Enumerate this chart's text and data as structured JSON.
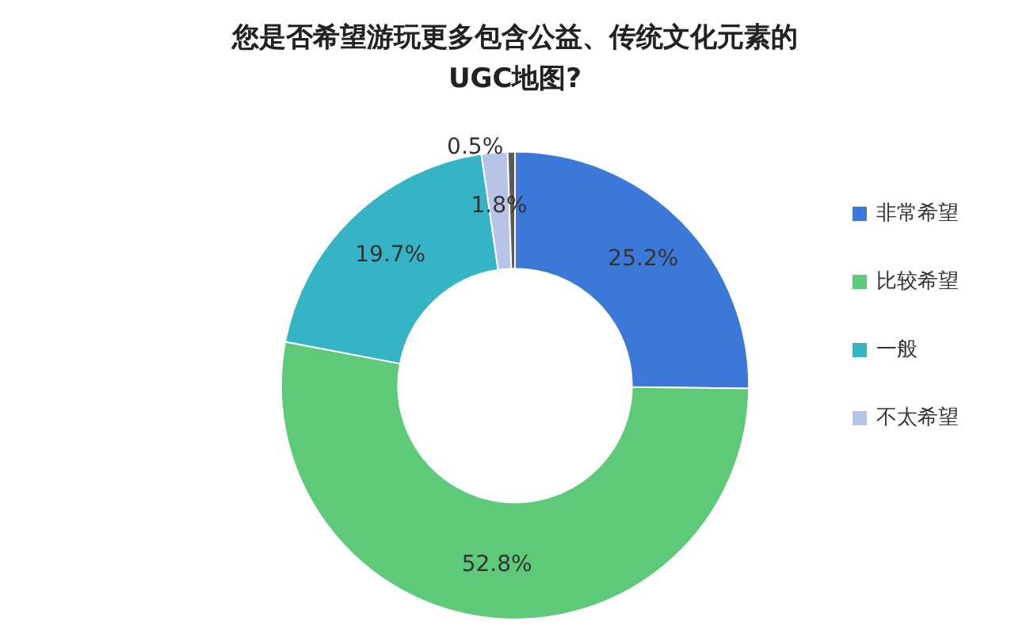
{
  "chart_data": {
    "type": "donut",
    "title": "您是否希望游玩更多包含公益、传统文化元素的\nUGC地图?",
    "categories": [
      "非常希望",
      "比较希望",
      "一般",
      "不太希望",
      null
    ],
    "values": [
      25.2,
      52.8,
      19.7,
      1.8,
      0.5
    ],
    "colors": [
      "#3b78d8",
      "#5fc97a",
      "#36b4c6",
      "#b7c4e8",
      "#5a5a5a"
    ],
    "value_labels": [
      "25.2%",
      "52.8%",
      "19.7%",
      "1.8%",
      "0.5%"
    ],
    "legend": "right"
  }
}
